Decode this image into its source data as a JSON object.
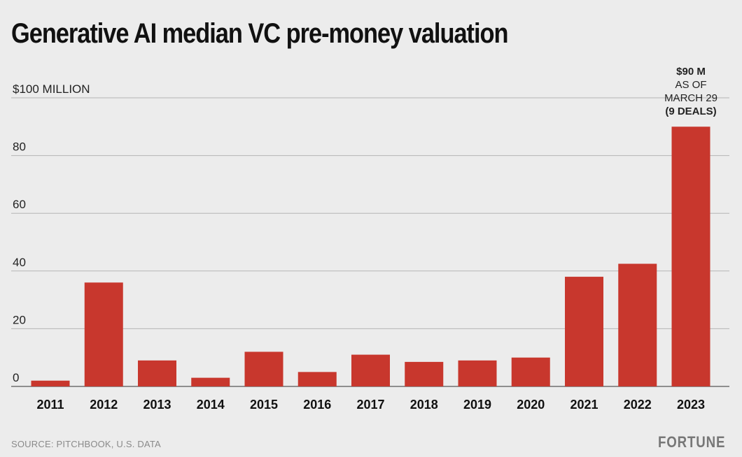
{
  "title": "Generative AI median VC pre-money valuation",
  "source": "SOURCE: PITCHBOOK, U.S. DATA",
  "brand": "FORTUNE",
  "colors": {
    "bar": "#c8372d",
    "grid": "#b5b5b5",
    "baseline": "#555555",
    "background": "#ececec"
  },
  "chart_data": {
    "type": "bar",
    "title": "Generative AI median VC pre-money valuation",
    "xlabel": "",
    "ylabel": "",
    "categories": [
      "2011",
      "2012",
      "2013",
      "2014",
      "2015",
      "2016",
      "2017",
      "2018",
      "2019",
      "2020",
      "2021",
      "2022",
      "2023"
    ],
    "values": [
      2,
      36,
      9,
      3,
      12,
      5,
      11,
      8.5,
      9,
      10,
      38,
      42.5,
      90
    ],
    "ylim": [
      0,
      100
    ],
    "yticks": [
      0,
      20,
      40,
      60,
      80,
      100
    ],
    "ytick_labels": [
      "0",
      "20",
      "40",
      "60",
      "80",
      "$100 MILLION"
    ],
    "grid": true,
    "annotation": {
      "category": "2023",
      "lines": [
        "$90 M",
        "AS OF",
        "MARCH 29",
        "(9 DEALS)"
      ],
      "bold": [
        true,
        false,
        false,
        true
      ]
    }
  }
}
